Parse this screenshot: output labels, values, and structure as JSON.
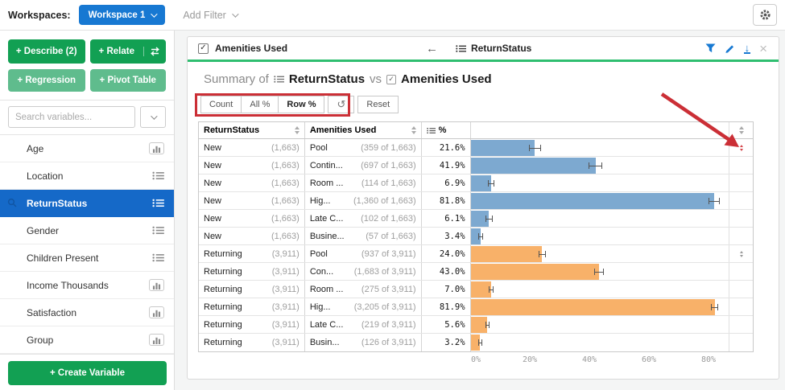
{
  "topbar": {
    "workspaces_label": "Workspaces:",
    "workspace_button": "Workspace 1",
    "add_filter": "Add Filter"
  },
  "sidebar": {
    "buttons": {
      "describe": "+ Describe (2)",
      "relate": "+ Relate",
      "regression": "+ Regression",
      "pivot_table": "+ Pivot Table"
    },
    "search_placeholder": "Search variables...",
    "variables": [
      {
        "label": "Age",
        "icon": "histogram",
        "selected": false
      },
      {
        "label": "Location",
        "icon": "list",
        "selected": false
      },
      {
        "label": "ReturnStatus",
        "icon": "list",
        "selected": true
      },
      {
        "label": "Gender",
        "icon": "list",
        "selected": false
      },
      {
        "label": "Children Present",
        "icon": "list",
        "selected": false
      },
      {
        "label": "Income Thousands",
        "icon": "histogram",
        "selected": false
      },
      {
        "label": "Satisfaction",
        "icon": "histogram",
        "selected": false
      },
      {
        "label": "Group",
        "icon": "histogram",
        "selected": false
      }
    ],
    "create_variable": "+ Create Variable"
  },
  "panel": {
    "header": {
      "checkbox_label": "Amenities Used",
      "back_arrow": "←",
      "related_variable": "ReturnStatus"
    },
    "title": {
      "prefix": "Summary of",
      "var1": "ReturnStatus",
      "vs": "vs",
      "var2": "Amenities Used"
    },
    "toolbar": {
      "count": "Count",
      "all_pct": "All %",
      "row_pct": "Row %",
      "refresh": "↺",
      "reset": "Reset"
    },
    "table": {
      "col1_header": "ReturnStatus",
      "col2_header": "Amenities Used",
      "col3_header": "%",
      "rows": [
        {
          "group": "New",
          "group_n": "(1,663)",
          "amenity": "Pool",
          "amenity_n": "(359 of 1,663)",
          "pct_label": "21.6%",
          "value": 21.6,
          "ci": 2.0,
          "series": "new",
          "indicator": "red"
        },
        {
          "group": "New",
          "group_n": "(1,663)",
          "amenity": "Contin...",
          "amenity_n": "(697 of 1,663)",
          "pct_label": "41.9%",
          "value": 41.9,
          "ci": 2.4,
          "series": "new",
          "indicator": null
        },
        {
          "group": "New",
          "group_n": "(1,663)",
          "amenity": "Room ...",
          "amenity_n": "(114 of 1,663)",
          "pct_label": "6.9%",
          "value": 6.9,
          "ci": 1.2,
          "series": "new",
          "indicator": null
        },
        {
          "group": "New",
          "group_n": "(1,663)",
          "amenity": "Hig...",
          "amenity_n": "(1,360 of 1,663)",
          "pct_label": "81.8%",
          "value": 81.8,
          "ci": 1.9,
          "series": "new",
          "indicator": null
        },
        {
          "group": "New",
          "group_n": "(1,663)",
          "amenity": "Late C...",
          "amenity_n": "(102 of 1,663)",
          "pct_label": "6.1%",
          "value": 6.1,
          "ci": 1.2,
          "series": "new",
          "indicator": null
        },
        {
          "group": "New",
          "group_n": "(1,663)",
          "amenity": "Busine...",
          "amenity_n": "(57 of 1,663)",
          "pct_label": "3.4%",
          "value": 3.4,
          "ci": 0.9,
          "series": "new",
          "indicator": null
        },
        {
          "group": "Returning",
          "group_n": "(3,911)",
          "amenity": "Pool",
          "amenity_n": "(937 of 3,911)",
          "pct_label": "24.0%",
          "value": 24.0,
          "ci": 1.3,
          "series": "returning",
          "indicator": "gray"
        },
        {
          "group": "Returning",
          "group_n": "(3,911)",
          "amenity": "Con...",
          "amenity_n": "(1,683 of 3,911)",
          "pct_label": "43.0%",
          "value": 43.0,
          "ci": 1.6,
          "series": "returning",
          "indicator": null
        },
        {
          "group": "Returning",
          "group_n": "(3,911)",
          "amenity": "Room ...",
          "amenity_n": "(275 of 3,911)",
          "pct_label": "7.0%",
          "value": 7.0,
          "ci": 0.8,
          "series": "returning",
          "indicator": null
        },
        {
          "group": "Returning",
          "group_n": "(3,911)",
          "amenity": "Hig...",
          "amenity_n": "(3,205 of 3,911)",
          "pct_label": "81.9%",
          "value": 81.9,
          "ci": 1.2,
          "series": "returning",
          "indicator": null
        },
        {
          "group": "Returning",
          "group_n": "(3,911)",
          "amenity": "Late C...",
          "amenity_n": "(219 of 3,911)",
          "pct_label": "5.6%",
          "value": 5.6,
          "ci": 0.7,
          "series": "returning",
          "indicator": null
        },
        {
          "group": "Returning",
          "group_n": "(3,911)",
          "amenity": "Busin...",
          "amenity_n": "(126 of 3,911)",
          "pct_label": "3.2%",
          "value": 3.2,
          "ci": 0.6,
          "series": "returning",
          "indicator": null
        }
      ],
      "axis_ticks": [
        {
          "label": "0%",
          "value": 0
        },
        {
          "label": "20%",
          "value": 20
        },
        {
          "label": "40%",
          "value": 40
        },
        {
          "label": "60%",
          "value": 60
        },
        {
          "label": "80%",
          "value": 80
        }
      ]
    }
  },
  "chart_data": {
    "type": "bar",
    "orientation": "horizontal",
    "categories": [
      "Pool",
      "Contin...",
      "Room ...",
      "Hig...",
      "Late C...",
      "Busine..."
    ],
    "series": [
      {
        "name": "New",
        "values": [
          21.6,
          41.9,
          6.9,
          81.8,
          6.1,
          3.4
        ]
      },
      {
        "name": "Returning",
        "values": [
          24.0,
          43.0,
          7.0,
          81.9,
          5.6,
          3.2
        ]
      }
    ],
    "title": "Summary of ReturnStatus vs Amenities Used",
    "xlabel": "%",
    "x_ticks": [
      "0%",
      "20%",
      "40%",
      "60%",
      "80%"
    ],
    "xlim": [
      0,
      87
    ],
    "grid": false,
    "legend_position": "none"
  },
  "colors": {
    "bar_new": "#7DA9D0",
    "bar_returning": "#F8B169",
    "accent_blue": "#1778D2",
    "selected_blue": "#1569C8",
    "green_dark": "#12A053",
    "green_light": "#5FBC8D",
    "tab_green": "#2FBE70",
    "annotation_red": "#CB2F36"
  }
}
